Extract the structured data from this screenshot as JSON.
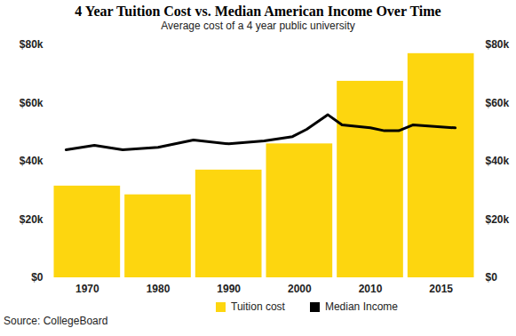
{
  "chart_data": {
    "type": "bar",
    "title": "4 Year Tuition Cost vs. Median American Income Over Time",
    "subtitle": "Average cost of a 4 year public university",
    "caption": "Source: CollegeBoard",
    "categories": [
      1970,
      1980,
      1990,
      2000,
      2010,
      2015
    ],
    "series": [
      {
        "name": "Tuition cost",
        "type": "bar",
        "color": "#FDD60F",
        "values": [
          31500,
          28500,
          37000,
          46000,
          67500,
          77000
        ]
      },
      {
        "name": "Median Income",
        "type": "line",
        "color": "#000000",
        "x": [
          1967,
          1971,
          1975,
          1980,
          1985,
          1990,
          1995,
          1999,
          2001,
          2004,
          2006,
          2010,
          2011,
          2012,
          2013,
          2016
        ],
        "values": [
          44000,
          45500,
          44000,
          44800,
          47300,
          46000,
          47000,
          48500,
          51000,
          56000,
          52500,
          51500,
          50500,
          50500,
          52500,
          51500
        ]
      }
    ],
    "ylim": [
      0,
      80000
    ],
    "yticks": [
      {
        "value": 0,
        "label": "$0"
      },
      {
        "value": 20000,
        "label": "$20k"
      },
      {
        "value": 40000,
        "label": "$40k"
      },
      {
        "value": 60000,
        "label": "$60k"
      },
      {
        "value": 80000,
        "label": "$80k"
      }
    ],
    "grid": false,
    "legend": "bottom"
  }
}
